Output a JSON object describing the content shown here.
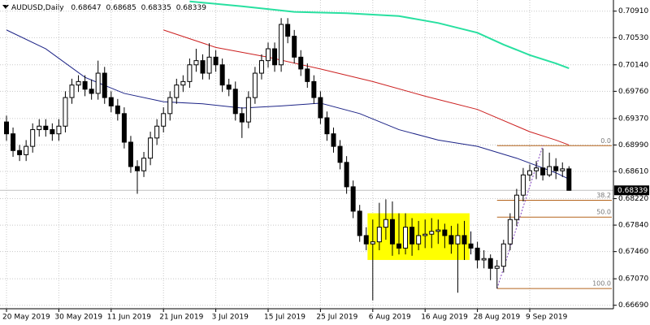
{
  "chart_data": {
    "type": "candlestick",
    "title": "AUDUSD,Daily",
    "categories": [
      "20 May 2019",
      null,
      null,
      null,
      null,
      null,
      null,
      null,
      "30 May 2019",
      null,
      null,
      null,
      null,
      null,
      null,
      null,
      "11 Jun 2019",
      null,
      null,
      null,
      null,
      null,
      null,
      null,
      "21 Jun 2019",
      null,
      null,
      null,
      null,
      null,
      null,
      null,
      "3 Jul 2019",
      null,
      null,
      null,
      null,
      null,
      null,
      null,
      "15 Jul 2019",
      null,
      null,
      null,
      null,
      null,
      null,
      null,
      "25 Jul 2019",
      null,
      null,
      null,
      null,
      null,
      null,
      null,
      "6 Aug 2019",
      null,
      null,
      null,
      null,
      null,
      null,
      null,
      "16 Aug 2019",
      null,
      null,
      null,
      null,
      null,
      null,
      null,
      "28 Aug 2019",
      null,
      null,
      null,
      null,
      null,
      null,
      null,
      "9 Sep 2019",
      null,
      null,
      null,
      null,
      null,
      null
    ],
    "open": [
      0.6932,
      0.6915,
      0.6891,
      0.6885,
      0.6897,
      0.6921,
      0.6926,
      0.6921,
      0.6915,
      0.6926,
      0.6967,
      0.6985,
      0.699,
      0.6979,
      0.6973,
      0.7002,
      0.6967,
      0.6955,
      0.6944,
      0.6903,
      0.6868,
      0.6862,
      0.688,
      0.6909,
      0.6926,
      0.6944,
      0.6967,
      0.6985,
      0.699,
      0.7014,
      0.702,
      0.7002,
      0.7025,
      0.7014,
      0.6985,
      0.6979,
      0.6944,
      0.6932,
      0.6967,
      0.7002,
      0.702,
      0.7037,
      0.7014,
      0.7072,
      0.7055,
      0.7025,
      0.7008,
      0.699,
      0.6967,
      0.6938,
      0.6915,
      0.6897,
      0.6874,
      0.6839,
      0.6804,
      0.6769,
      0.6757,
      0.676,
      0.6781,
      0.6792,
      0.6757,
      0.6751,
      0.6781,
      0.6757,
      0.6769,
      0.6771,
      0.6775,
      0.6777,
      0.6769,
      0.6757,
      0.6769,
      0.6757,
      0.6751,
      0.6734,
      0.6736,
      0.6722,
      0.6725,
      0.6757,
      0.6792,
      0.6827,
      0.6856,
      0.6862,
      0.6866,
      0.6856,
      0.6868,
      0.6862,
      0.68647
    ],
    "high": [
      0.6941,
      0.6924,
      0.6899,
      0.6906,
      0.693,
      0.6936,
      0.6936,
      0.693,
      0.6936,
      0.6976,
      0.6994,
      0.6999,
      0.6999,
      0.6993,
      0.702,
      0.7011,
      0.6976,
      0.6965,
      0.6953,
      0.6912,
      0.6877,
      0.6889,
      0.6918,
      0.6936,
      0.6953,
      0.6976,
      0.6994,
      0.6999,
      0.7023,
      0.7037,
      0.7029,
      0.7045,
      0.7035,
      0.7023,
      0.6994,
      0.699,
      0.6953,
      0.6976,
      0.7011,
      0.7029,
      0.7046,
      0.7046,
      0.7081,
      0.7081,
      0.7064,
      0.7035,
      0.7016,
      0.6999,
      0.6976,
      0.6947,
      0.6924,
      0.6906,
      0.6883,
      0.6848,
      0.6813,
      0.6781,
      0.6792,
      0.6816,
      0.6821,
      0.6818,
      0.6801,
      0.6801,
      0.6794,
      0.679,
      0.6792,
      0.6794,
      0.6792,
      0.6786,
      0.6783,
      0.6786,
      0.679,
      0.6775,
      0.676,
      0.6748,
      0.6742,
      0.6734,
      0.6763,
      0.6801,
      0.6836,
      0.6866,
      0.6871,
      0.6876,
      0.6894,
      0.6888,
      0.688,
      0.6874,
      0.68685
    ],
    "low": [
      0.6905,
      0.6882,
      0.6876,
      0.6876,
      0.6888,
      0.6911,
      0.6911,
      0.6905,
      0.6905,
      0.6917,
      0.6958,
      0.6975,
      0.6969,
      0.6964,
      0.6964,
      0.6958,
      0.6946,
      0.6934,
      0.6894,
      0.6859,
      0.6829,
      0.6853,
      0.687,
      0.6899,
      0.6917,
      0.6934,
      0.6958,
      0.6975,
      0.6981,
      0.7004,
      0.6993,
      0.6993,
      0.7004,
      0.6975,
      0.6969,
      0.6934,
      0.6909,
      0.6923,
      0.6958,
      0.6993,
      0.701,
      0.7004,
      0.7004,
      0.7045,
      0.7016,
      0.6998,
      0.6981,
      0.6958,
      0.6929,
      0.6905,
      0.6888,
      0.6864,
      0.6829,
      0.6794,
      0.676,
      0.6748,
      0.6676,
      0.6748,
      0.6763,
      0.674,
      0.6742,
      0.6742,
      0.674,
      0.6748,
      0.6751,
      0.6751,
      0.6757,
      0.6751,
      0.6743,
      0.6687,
      0.6734,
      0.6742,
      0.6722,
      0.6722,
      0.6705,
      0.6693,
      0.6716,
      0.6748,
      0.6783,
      0.6818,
      0.6847,
      0.685,
      0.6848,
      0.6853,
      0.685,
      0.6853,
      0.68335
    ],
    "close": [
      0.6915,
      0.6891,
      0.6885,
      0.6897,
      0.6921,
      0.6926,
      0.6921,
      0.6915,
      0.6926,
      0.6967,
      0.6985,
      0.699,
      0.6979,
      0.6973,
      0.7002,
      0.6967,
      0.6955,
      0.6944,
      0.6903,
      0.6868,
      0.6862,
      0.688,
      0.6909,
      0.6926,
      0.6944,
      0.6967,
      0.6985,
      0.699,
      0.7014,
      0.702,
      0.7002,
      0.7025,
      0.7014,
      0.6985,
      0.6979,
      0.6944,
      0.6932,
      0.6967,
      0.7002,
      0.702,
      0.7037,
      0.7014,
      0.7072,
      0.7055,
      0.7025,
      0.7008,
      0.699,
      0.6967,
      0.6938,
      0.6915,
      0.6897,
      0.6874,
      0.6839,
      0.6804,
      0.6769,
      0.6757,
      0.676,
      0.6781,
      0.6792,
      0.6757,
      0.6751,
      0.6781,
      0.6757,
      0.6769,
      0.6771,
      0.6775,
      0.6777,
      0.6769,
      0.6757,
      0.6769,
      0.6757,
      0.6751,
      0.6734,
      0.6736,
      0.6722,
      0.6725,
      0.6757,
      0.6792,
      0.6827,
      0.6856,
      0.6862,
      0.6866,
      0.6856,
      0.6868,
      0.6862,
      0.68647,
      0.68339
    ],
    "up_color": "#ffffff",
    "down_color": "#000000",
    "ylim": [
      0.6664,
      0.7107
    ],
    "yticks": [
      {
        "value": 0.7091,
        "label": "0.70910"
      },
      {
        "value": 0.7053,
        "label": "0.70530"
      },
      {
        "value": 0.7014,
        "label": "0.70140"
      },
      {
        "value": 0.6976,
        "label": "0.69760"
      },
      {
        "value": 0.6937,
        "label": "0.69370"
      },
      {
        "value": 0.6899,
        "label": "0.68990"
      },
      {
        "value": 0.6861,
        "label": "0.68610"
      },
      {
        "value": 0.6822,
        "label": "0.68220"
      },
      {
        "value": 0.6784,
        "label": "0.67840"
      },
      {
        "value": 0.6746,
        "label": "0.67460"
      },
      {
        "value": 0.6707,
        "label": "0.67070"
      },
      {
        "value": 0.6669,
        "label": "0.66690"
      }
    ],
    "grid": true,
    "moving_averages": [
      {
        "color": "#1c2386",
        "x": [
          0,
          6,
          12,
          18,
          24,
          30,
          36,
          42,
          48,
          54,
          60,
          66,
          72,
          78,
          84,
          86
        ],
        "values": [
          0.7064,
          0.7037,
          0.6996,
          0.6973,
          0.6961,
          0.6958,
          0.6952,
          0.6955,
          0.6959,
          0.6944,
          0.6921,
          0.6906,
          0.6897,
          0.688,
          0.6859,
          0.685
        ]
      },
      {
        "color": "#cc2020",
        "x": [
          24,
          32,
          40,
          48,
          56,
          64,
          72,
          78,
          80,
          84,
          86
        ],
        "values": [
          0.7064,
          0.7039,
          0.7025,
          0.7008,
          0.699,
          0.6969,
          0.695,
          0.6926,
          0.6918,
          0.6906,
          0.6899
        ]
      },
      {
        "color": "#28e0a0",
        "x": [
          28,
          36,
          44,
          52,
          60,
          66,
          72,
          76,
          80,
          84,
          86
        ],
        "values": [
          0.7105,
          0.7098,
          0.709,
          0.7088,
          0.7084,
          0.7074,
          0.706,
          0.7043,
          0.7028,
          0.7016,
          0.7009
        ]
      }
    ],
    "rectangle": {
      "color": "#ffff00",
      "x": [
        55.2,
        70.8
      ],
      "y": [
        0.6801,
        0.6734
      ]
    },
    "fibonacci": {
      "color": "#b5651d",
      "x": [
        75,
        82
      ],
      "y": [
        0.6693,
        0.6898
      ],
      "levels": [
        {
          "value": 0,
          "label": "0.0"
        },
        {
          "value": 38.2,
          "label": "38.2"
        },
        {
          "value": 50,
          "label": "50.0"
        },
        {
          "value": 100,
          "label": "100.0"
        }
      ]
    },
    "price_line": {
      "value": 0.68339,
      "label": "0.68339",
      "color": "#c0c0c0"
    }
  }
}
